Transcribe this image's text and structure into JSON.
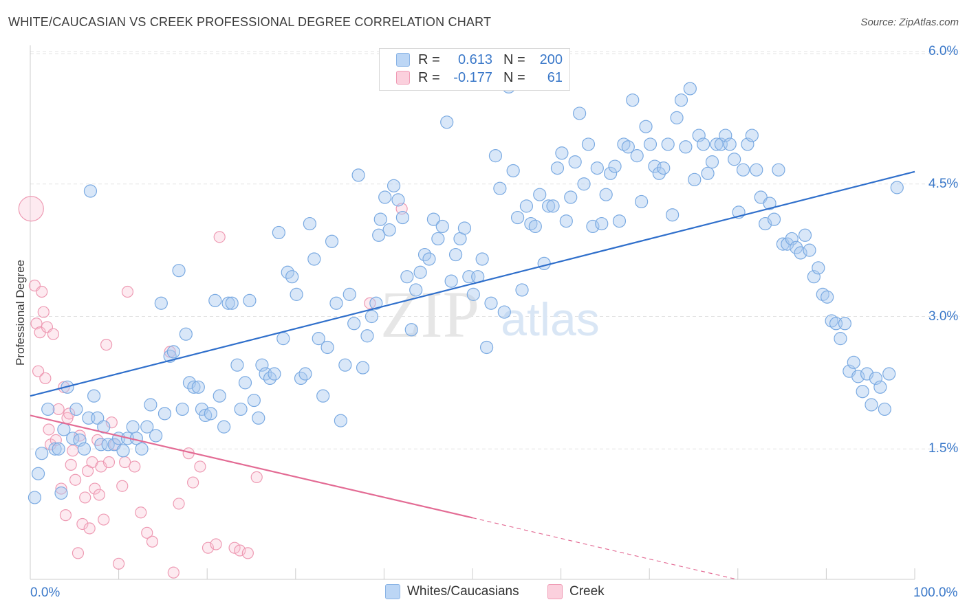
{
  "header": {
    "title": "WHITE/CAUCASIAN VS CREEK PROFESSIONAL DEGREE CORRELATION CHART",
    "source": "Source: ZipAtlas.com"
  },
  "watermark": {
    "zip": "ZIP",
    "atlas": "atlas"
  },
  "legend": {
    "rows": [
      {
        "r_label": "R =",
        "r_value": "0.613",
        "n_label": "N =",
        "n_value": "200",
        "color": "#8ab4e6",
        "fill": "#bcd6f5"
      },
      {
        "r_label": "R =",
        "r_value": "-0.177",
        "n_label": "N =",
        "n_value": "61",
        "color": "#f09bb5",
        "fill": "#fbd0dd"
      }
    ]
  },
  "bottom_legend": {
    "items": [
      {
        "label": "Whites/Caucasians",
        "color": "#8ab4e6",
        "fill": "#bcd6f5"
      },
      {
        "label": "Creek",
        "color": "#f09bb5",
        "fill": "#fbd0dd"
      }
    ]
  },
  "colors": {
    "blue_point_stroke": "#7aaae2",
    "blue_point_fill": "rgba(170,201,240,0.45)",
    "blue_line": "#2f6fcb",
    "pink_point_stroke": "#ee9ab3",
    "pink_point_fill": "rgba(249,196,212,0.35)",
    "pink_line": "#e36b94",
    "grid": "#e3e3e3",
    "tick_label": "#3a78c9"
  },
  "chart_data": {
    "type": "scatter",
    "title": "WHITE/CAUCASIAN VS CREEK PROFESSIONAL DEGREE CORRELATION CHART",
    "xlabel": "",
    "ylabel": "Professional Degree",
    "xlim": [
      0,
      100
    ],
    "ylim": [
      0,
      6.2
    ],
    "x_tick_labels": [
      "0.0%",
      "100.0%"
    ],
    "y_ticks": [
      1.5,
      3.0,
      4.5,
      6.0
    ],
    "y_tick_labels": [
      "1.5%",
      "3.0%",
      "4.5%",
      "6.0%"
    ],
    "grid": true,
    "legend_position": "top-center",
    "series": [
      {
        "name": "Whites/Caucasians",
        "r": 0.613,
        "n": 200,
        "trend": {
          "x": [
            0,
            100
          ],
          "y": [
            2.1,
            4.64
          ]
        },
        "points": [
          [
            0.5,
            0.95
          ],
          [
            0.9,
            1.22
          ],
          [
            1.3,
            1.45
          ],
          [
            2.0,
            1.95
          ],
          [
            2.8,
            1.5
          ],
          [
            3.2,
            1.5
          ],
          [
            3.5,
            1.0
          ],
          [
            3.8,
            1.72
          ],
          [
            4.2,
            2.2
          ],
          [
            4.8,
            1.62
          ],
          [
            5.2,
            1.95
          ],
          [
            5.6,
            1.6
          ],
          [
            6.1,
            1.5
          ],
          [
            6.6,
            1.85
          ],
          [
            7.2,
            2.1
          ],
          [
            7.6,
            1.85
          ],
          [
            8.0,
            1.55
          ],
          [
            8.3,
            1.75
          ],
          [
            8.8,
            1.55
          ],
          [
            9.5,
            1.55
          ],
          [
            10.0,
            1.62
          ],
          [
            10.5,
            1.48
          ],
          [
            11.0,
            1.62
          ],
          [
            11.6,
            1.75
          ],
          [
            12.0,
            1.62
          ],
          [
            12.6,
            1.5
          ],
          [
            13.2,
            1.75
          ],
          [
            13.6,
            2.0
          ],
          [
            14.2,
            1.65
          ],
          [
            14.8,
            3.15
          ],
          [
            15.2,
            1.9
          ],
          [
            15.8,
            2.55
          ],
          [
            16.2,
            2.6
          ],
          [
            16.8,
            3.52
          ],
          [
            17.2,
            1.95
          ],
          [
            17.6,
            2.8
          ],
          [
            18.0,
            2.25
          ],
          [
            18.5,
            2.2
          ],
          [
            19.0,
            2.2
          ],
          [
            19.4,
            1.95
          ],
          [
            19.8,
            1.88
          ],
          [
            20.4,
            1.9
          ],
          [
            20.9,
            3.18
          ],
          [
            21.4,
            2.1
          ],
          [
            21.9,
            1.75
          ],
          [
            22.4,
            3.15
          ],
          [
            22.8,
            3.15
          ],
          [
            23.4,
            2.45
          ],
          [
            23.8,
            1.95
          ],
          [
            24.3,
            2.25
          ],
          [
            24.8,
            3.18
          ],
          [
            25.3,
            2.05
          ],
          [
            25.8,
            1.85
          ],
          [
            26.2,
            2.45
          ],
          [
            26.6,
            2.35
          ],
          [
            27.1,
            2.3
          ],
          [
            27.6,
            2.35
          ],
          [
            28.1,
            3.95
          ],
          [
            28.6,
            2.75
          ],
          [
            29.1,
            3.5
          ],
          [
            29.6,
            3.45
          ],
          [
            30.1,
            3.25
          ],
          [
            30.6,
            2.3
          ],
          [
            31.1,
            2.35
          ],
          [
            31.6,
            4.05
          ],
          [
            32.1,
            3.65
          ],
          [
            32.6,
            2.75
          ],
          [
            33.1,
            2.1
          ],
          [
            33.6,
            2.65
          ],
          [
            34.1,
            3.85
          ],
          [
            34.6,
            3.15
          ],
          [
            35.1,
            1.82
          ],
          [
            35.6,
            2.45
          ],
          [
            36.1,
            3.25
          ],
          [
            36.6,
            2.92
          ],
          [
            37.1,
            4.6
          ],
          [
            37.6,
            2.42
          ],
          [
            38.1,
            2.78
          ],
          [
            38.6,
            3.0
          ],
          [
            39.1,
            3.15
          ],
          [
            39.6,
            4.1
          ],
          [
            40.1,
            4.35
          ],
          [
            40.6,
            3.98
          ],
          [
            41.1,
            4.48
          ],
          [
            41.6,
            4.32
          ],
          [
            42.1,
            4.12
          ],
          [
            42.6,
            3.45
          ],
          [
            43.1,
            2.85
          ],
          [
            43.6,
            3.3
          ],
          [
            44.1,
            3.5
          ],
          [
            44.6,
            3.7
          ],
          [
            45.1,
            3.65
          ],
          [
            45.6,
            4.1
          ],
          [
            46.1,
            3.88
          ],
          [
            46.6,
            4.02
          ],
          [
            47.1,
            5.2
          ],
          [
            47.6,
            3.4
          ],
          [
            48.1,
            3.7
          ],
          [
            48.6,
            3.88
          ],
          [
            49.1,
            4.0
          ],
          [
            49.6,
            3.45
          ],
          [
            50.1,
            3.25
          ],
          [
            50.6,
            3.45
          ],
          [
            51.1,
            3.65
          ],
          [
            51.6,
            2.65
          ],
          [
            52.1,
            3.15
          ],
          [
            52.6,
            4.82
          ],
          [
            53.1,
            4.45
          ],
          [
            53.6,
            3.05
          ],
          [
            54.1,
            5.6
          ],
          [
            54.6,
            4.65
          ],
          [
            55.1,
            4.12
          ],
          [
            55.6,
            3.3
          ],
          [
            56.1,
            4.25
          ],
          [
            56.6,
            4.05
          ],
          [
            57.1,
            4.02
          ],
          [
            57.6,
            4.38
          ],
          [
            58.1,
            3.6
          ],
          [
            58.6,
            4.25
          ],
          [
            59.1,
            4.25
          ],
          [
            59.6,
            4.68
          ],
          [
            60.1,
            4.85
          ],
          [
            60.6,
            4.08
          ],
          [
            61.1,
            4.35
          ],
          [
            61.6,
            4.75
          ],
          [
            62.1,
            5.3
          ],
          [
            62.6,
            4.5
          ],
          [
            63.1,
            4.95
          ],
          [
            63.6,
            4.02
          ],
          [
            64.1,
            4.68
          ],
          [
            64.6,
            4.05
          ],
          [
            65.1,
            4.38
          ],
          [
            65.6,
            4.62
          ],
          [
            66.1,
            4.7
          ],
          [
            66.6,
            4.08
          ],
          [
            67.1,
            4.95
          ],
          [
            67.6,
            4.92
          ],
          [
            68.1,
            5.45
          ],
          [
            68.6,
            4.82
          ],
          [
            69.1,
            4.3
          ],
          [
            69.6,
            5.15
          ],
          [
            70.1,
            4.95
          ],
          [
            70.6,
            4.7
          ],
          [
            71.1,
            4.62
          ],
          [
            71.6,
            4.68
          ],
          [
            72.1,
            4.95
          ],
          [
            72.6,
            4.15
          ],
          [
            73.1,
            5.25
          ],
          [
            73.6,
            5.45
          ],
          [
            74.1,
            4.92
          ],
          [
            74.6,
            5.58
          ],
          [
            75.1,
            4.55
          ],
          [
            75.6,
            5.05
          ],
          [
            76.1,
            4.95
          ],
          [
            76.6,
            4.62
          ],
          [
            77.1,
            4.75
          ],
          [
            77.6,
            4.95
          ],
          [
            78.1,
            4.95
          ],
          [
            78.6,
            5.05
          ],
          [
            79.1,
            4.95
          ],
          [
            79.6,
            4.78
          ],
          [
            80.1,
            4.18
          ],
          [
            80.6,
            4.66
          ],
          [
            81.1,
            4.95
          ],
          [
            81.6,
            5.05
          ],
          [
            82.1,
            4.66
          ],
          [
            82.6,
            4.35
          ],
          [
            83.1,
            4.05
          ],
          [
            83.6,
            4.28
          ],
          [
            84.1,
            4.1
          ],
          [
            84.6,
            4.66
          ],
          [
            85.1,
            3.82
          ],
          [
            85.6,
            3.82
          ],
          [
            86.1,
            3.88
          ],
          [
            86.6,
            3.78
          ],
          [
            87.1,
            3.72
          ],
          [
            87.6,
            3.92
          ],
          [
            88.1,
            3.75
          ],
          [
            88.6,
            3.45
          ],
          [
            89.1,
            3.55
          ],
          [
            89.6,
            3.25
          ],
          [
            90.1,
            3.22
          ],
          [
            90.6,
            2.95
          ],
          [
            91.1,
            2.92
          ],
          [
            91.6,
            2.75
          ],
          [
            92.1,
            2.92
          ],
          [
            92.6,
            2.38
          ],
          [
            93.1,
            2.48
          ],
          [
            93.6,
            2.32
          ],
          [
            94.1,
            2.15
          ],
          [
            94.6,
            2.35
          ],
          [
            95.1,
            2.0
          ],
          [
            95.6,
            2.3
          ],
          [
            96.1,
            2.2
          ],
          [
            96.6,
            1.95
          ],
          [
            97.1,
            2.35
          ],
          [
            98.0,
            4.46
          ],
          [
            6.8,
            4.42
          ],
          [
            39.4,
            3.92
          ],
          [
            56.0,
            5.9
          ]
        ]
      },
      {
        "name": "Creek",
        "r": -0.177,
        "n": 61,
        "trend": {
          "x": [
            0,
            50
          ],
          "y": [
            1.88,
            0.72
          ],
          "dashed_to": {
            "x": 80,
            "y": 0.02
          }
        },
        "points": [
          [
            0.1,
            4.22
          ],
          [
            0.5,
            3.35
          ],
          [
            0.7,
            2.92
          ],
          [
            0.9,
            2.38
          ],
          [
            1.1,
            2.82
          ],
          [
            1.3,
            3.28
          ],
          [
            1.5,
            3.05
          ],
          [
            1.7,
            2.3
          ],
          [
            1.9,
            2.88
          ],
          [
            2.1,
            1.72
          ],
          [
            2.3,
            1.55
          ],
          [
            2.6,
            2.8
          ],
          [
            2.9,
            1.6
          ],
          [
            3.2,
            1.95
          ],
          [
            3.5,
            1.05
          ],
          [
            3.8,
            2.2
          ],
          [
            4.0,
            0.75
          ],
          [
            4.2,
            1.85
          ],
          [
            4.4,
            1.9
          ],
          [
            4.6,
            1.32
          ],
          [
            4.8,
            1.48
          ],
          [
            5.1,
            1.15
          ],
          [
            5.4,
            0.32
          ],
          [
            5.6,
            1.65
          ],
          [
            5.9,
            0.65
          ],
          [
            6.2,
            0.95
          ],
          [
            6.5,
            1.25
          ],
          [
            6.7,
            0.6
          ],
          [
            7.0,
            1.35
          ],
          [
            7.3,
            1.05
          ],
          [
            7.6,
            1.6
          ],
          [
            7.8,
            0.98
          ],
          [
            8.0,
            1.3
          ],
          [
            8.3,
            0.7
          ],
          [
            8.6,
            2.68
          ],
          [
            8.9,
            1.35
          ],
          [
            9.2,
            1.8
          ],
          [
            9.6,
            1.55
          ],
          [
            10.0,
            0.2
          ],
          [
            10.4,
            1.08
          ],
          [
            10.7,
            1.35
          ],
          [
            11.0,
            3.28
          ],
          [
            11.8,
            1.3
          ],
          [
            12.5,
            0.78
          ],
          [
            13.2,
            0.55
          ],
          [
            13.8,
            0.45
          ],
          [
            15.8,
            2.6
          ],
          [
            16.2,
            0.1
          ],
          [
            16.8,
            0.88
          ],
          [
            17.9,
            1.45
          ],
          [
            18.4,
            1.12
          ],
          [
            19.2,
            1.3
          ],
          [
            20.1,
            0.38
          ],
          [
            21.0,
            0.42
          ],
          [
            21.4,
            3.9
          ],
          [
            23.1,
            0.38
          ],
          [
            23.7,
            0.35
          ],
          [
            24.6,
            0.32
          ],
          [
            25.6,
            1.18
          ],
          [
            38.4,
            3.15
          ],
          [
            42.0,
            4.22
          ]
        ]
      }
    ]
  }
}
